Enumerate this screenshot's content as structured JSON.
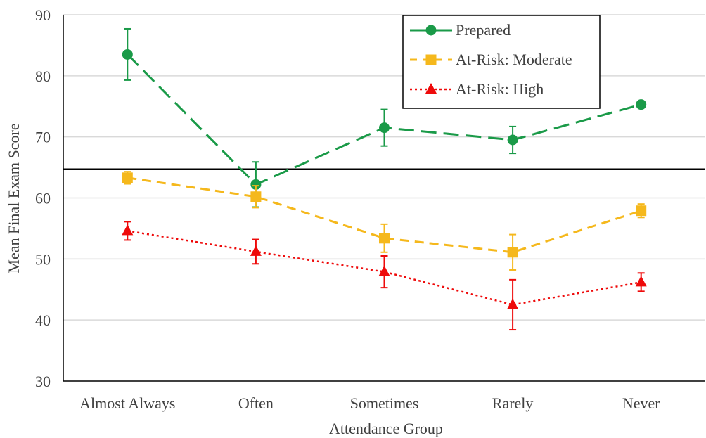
{
  "chart_data": {
    "type": "line",
    "xlabel": "Attendance Group",
    "ylabel": "Mean Final Exam Score",
    "categories": [
      "Almost Always",
      "Often",
      "Sometimes",
      "Rarely",
      "Never"
    ],
    "ylim": [
      30,
      90
    ],
    "yticks": [
      30,
      40,
      50,
      60,
      70,
      80,
      90
    ],
    "grid": true,
    "legend_position": "top-right",
    "reference_line": 64.7,
    "series": [
      {
        "name": "Prepared",
        "color": "#1a9a48",
        "marker": "circle",
        "line_style": "long-dash",
        "values": [
          83.5,
          62.2,
          71.5,
          69.5,
          75.3
        ],
        "error": [
          4.2,
          3.7,
          3.0,
          2.2,
          0
        ]
      },
      {
        "name": "At-Risk: Moderate",
        "color": "#f5b81c",
        "marker": "square",
        "line_style": "dash",
        "values": [
          63.3,
          60.2,
          53.4,
          51.1,
          57.9
        ],
        "error": [
          1.0,
          1.8,
          2.3,
          2.9,
          1.1
        ]
      },
      {
        "name": "At-Risk: High",
        "color": "#ee0a0a",
        "marker": "triangle",
        "line_style": "dotted",
        "values": [
          54.6,
          51.2,
          47.9,
          42.5,
          46.2
        ],
        "error": [
          1.5,
          2.0,
          2.6,
          4.1,
          1.5
        ]
      }
    ]
  }
}
